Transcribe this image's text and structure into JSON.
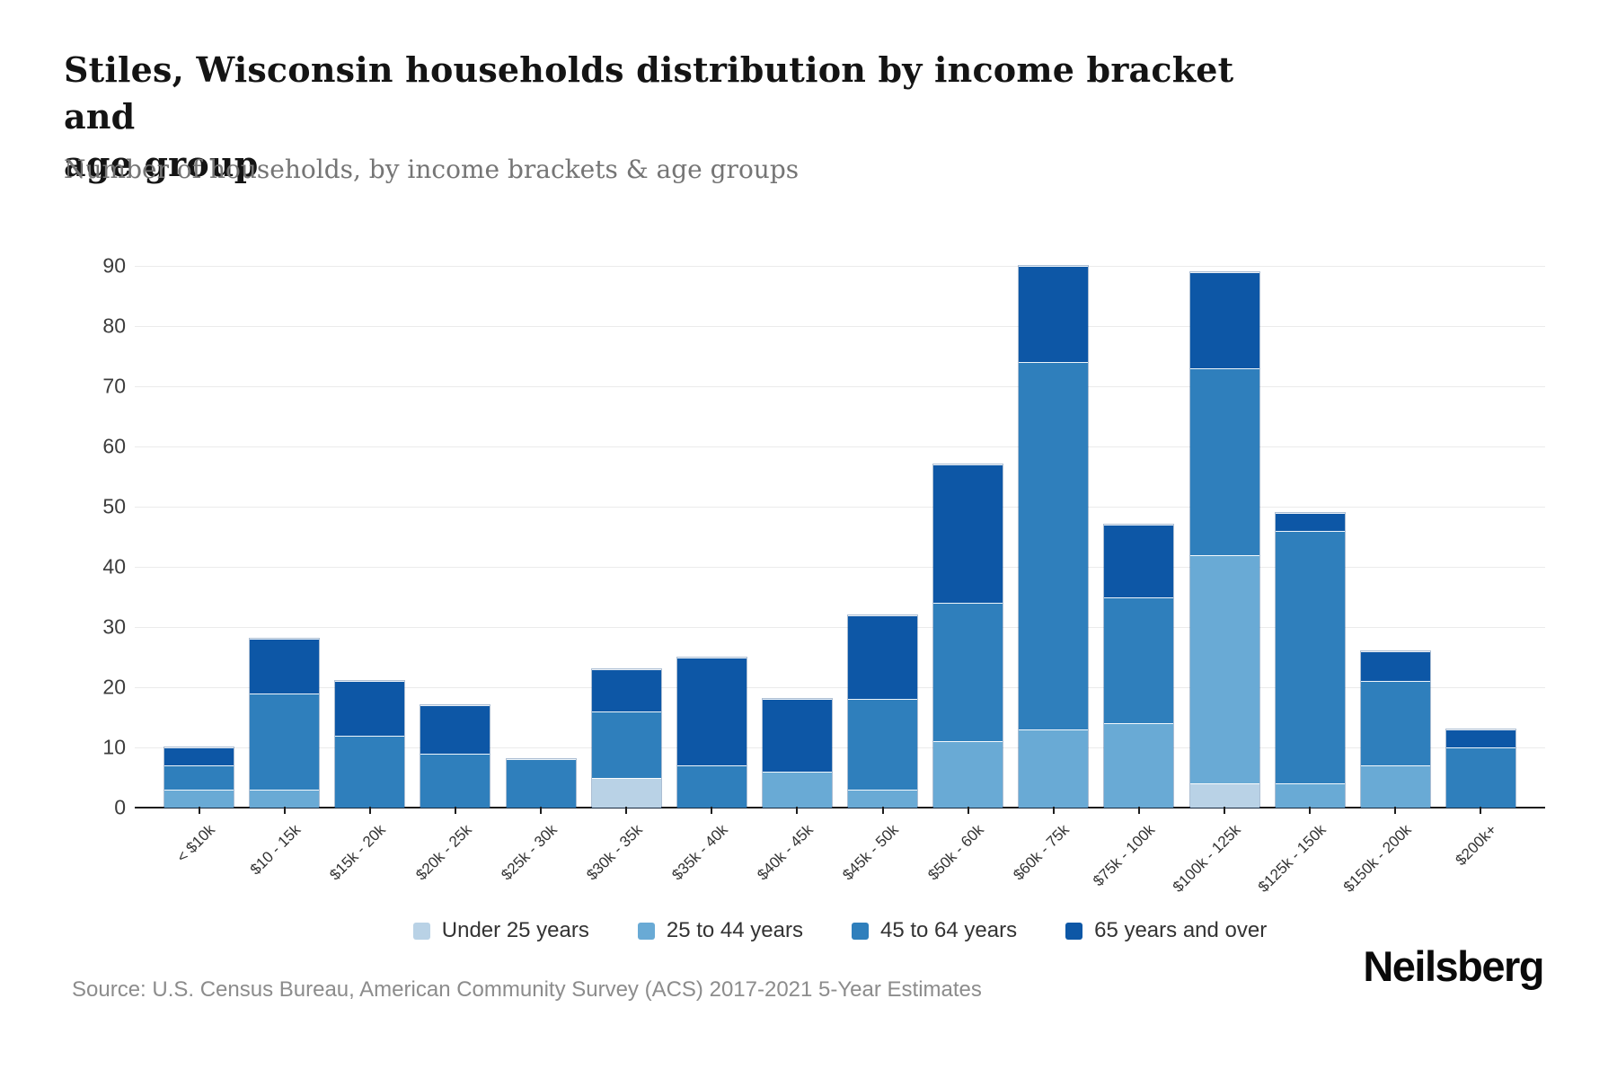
{
  "header": {
    "title_line1": "Stiles, Wisconsin households distribution by income bracket and",
    "title_line2": "age group",
    "subtitle": "Number of households, by income brackets & age groups"
  },
  "chart_data": {
    "type": "bar",
    "stacked": true,
    "title": "Stiles, Wisconsin households distribution by income bracket and age group",
    "subtitle": "Number of households, by income brackets & age groups",
    "xlabel": "",
    "ylabel": "Number of households",
    "ylim": [
      0,
      90
    ],
    "ytick_step": 10,
    "grid": true,
    "legend_position": "bottom",
    "categories": [
      "< $10k",
      "$10 - 15k",
      "$15k - 20k",
      "$20k - 25k",
      "$25k - 30k",
      "$30k - 35k",
      "$35k - 40k",
      "$40k - 45k",
      "$45k - 50k",
      "$50k - 60k",
      "$60k - 75k",
      "$75k - 100k",
      "$100k - 125k",
      "$125k - 150k",
      "$150k - 200k",
      "$200k+"
    ],
    "series": [
      {
        "name": "Under 25 years",
        "color": "#b9d2e6",
        "values": [
          0,
          0,
          0,
          0,
          0,
          5,
          0,
          0,
          0,
          0,
          0,
          0,
          4,
          0,
          0,
          0
        ]
      },
      {
        "name": "25 to 44 years",
        "color": "#69aad5",
        "values": [
          3,
          3,
          0,
          0,
          0,
          0,
          0,
          6,
          3,
          11,
          13,
          14,
          38,
          4,
          7,
          0
        ]
      },
      {
        "name": "45 to 64 years",
        "color": "#2f7fbc",
        "values": [
          4,
          16,
          12,
          9,
          8,
          11,
          7,
          0,
          15,
          23,
          61,
          21,
          31,
          42,
          14,
          10
        ]
      },
      {
        "name": "65 years and over",
        "color": "#0d57a6",
        "values": [
          3,
          9,
          9,
          8,
          0,
          7,
          18,
          12,
          14,
          23,
          16,
          12,
          16,
          3,
          5,
          3
        ]
      }
    ],
    "totals": [
      10,
      28,
      21,
      17,
      8,
      23,
      25,
      18,
      32,
      57,
      90,
      47,
      89,
      49,
      26,
      13
    ]
  },
  "footer": {
    "source": "Source: U.S. Census Bureau, American Community Survey (ACS) 2017-2021 5-Year Estimates",
    "logo": "Neilsberg"
  }
}
